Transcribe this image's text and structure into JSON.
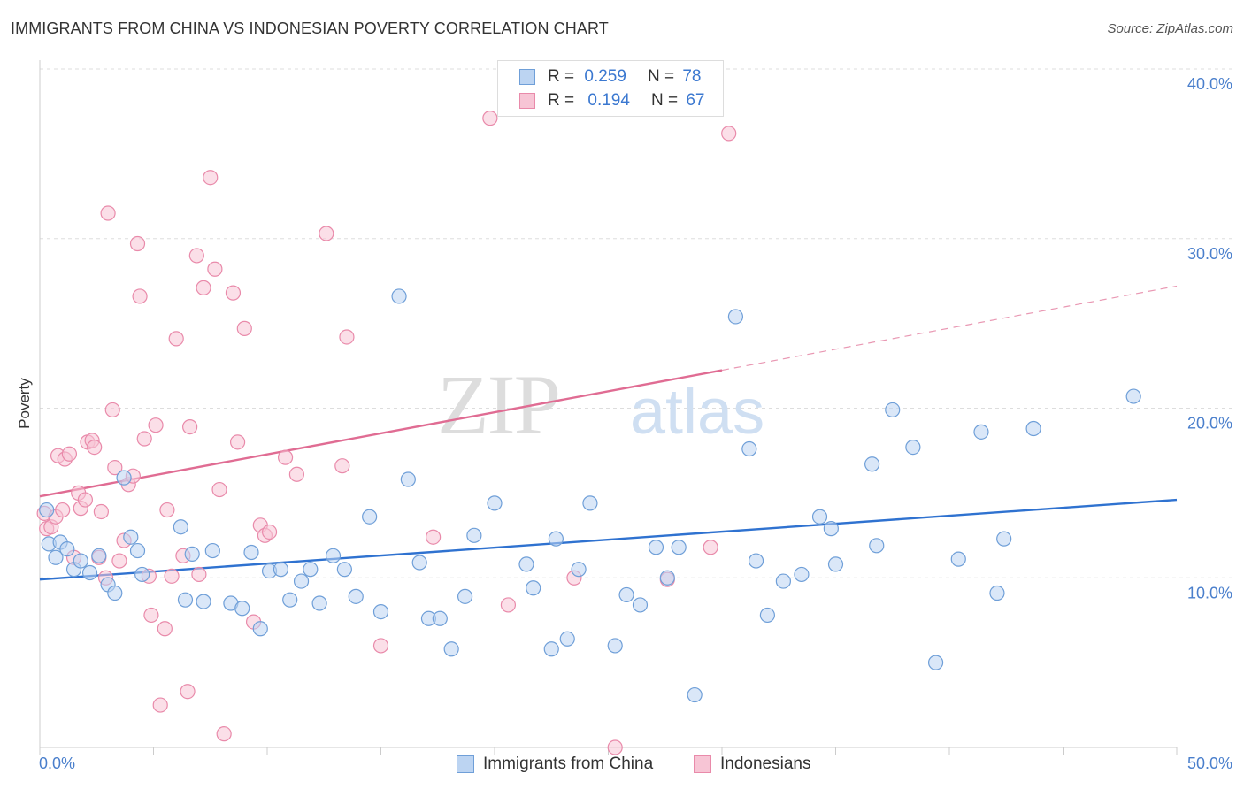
{
  "header": {
    "title": "IMMIGRANTS FROM CHINA VS INDONESIAN POVERTY CORRELATION CHART",
    "source": "Source: ZipAtlas.com"
  },
  "watermark": {
    "zip": "ZIP",
    "atlas": "atlas"
  },
  "legend": {
    "items": [
      {
        "r_label": "R =",
        "r_value": "0.259",
        "n_label": "N =",
        "n_value": "78",
        "color": "#8fb8e8"
      },
      {
        "r_label": "R =",
        "r_value": "0.194",
        "n_label": "N =",
        "n_value": "67",
        "color": "#f2a7bf"
      }
    ]
  },
  "bottom_legend": {
    "china": "Immigrants from China",
    "indonesians": "Indonesians"
  },
  "colors": {
    "china_fill": "#bcd4f2",
    "china_stroke": "#6f9fd8",
    "china_line": "#2f72d0",
    "indo_fill": "#f7c5d5",
    "indo_stroke": "#e98aaa",
    "indo_line": "#e06c93",
    "axis_text": "#4a7fcc",
    "grid": "#dddddd"
  },
  "chart_data": {
    "type": "scatter",
    "title": "IMMIGRANTS FROM CHINA VS INDONESIAN POVERTY CORRELATION CHART",
    "xlabel": "",
    "ylabel": "Poverty",
    "xlim": [
      0,
      50
    ],
    "ylim": [
      0,
      40
    ],
    "x_ticks": [
      "0.0%",
      "50.0%"
    ],
    "y_ticks": [
      "10.0%",
      "20.0%",
      "30.0%",
      "40.0%"
    ],
    "legend_position": "top-center",
    "grid": true,
    "series": [
      {
        "name": "Immigrants from China",
        "points": [
          [
            0.3,
            14.0
          ],
          [
            0.4,
            12.0
          ],
          [
            0.7,
            11.2
          ],
          [
            0.9,
            12.1
          ],
          [
            1.2,
            11.7
          ],
          [
            1.5,
            10.5
          ],
          [
            1.8,
            11.0
          ],
          [
            2.2,
            10.3
          ],
          [
            2.6,
            11.3
          ],
          [
            3.7,
            15.9
          ],
          [
            3.0,
            9.6
          ],
          [
            3.3,
            9.1
          ],
          [
            4.0,
            12.4
          ],
          [
            4.3,
            11.6
          ],
          [
            4.5,
            10.2
          ],
          [
            6.2,
            13.0
          ],
          [
            6.4,
            8.7
          ],
          [
            6.7,
            11.4
          ],
          [
            7.2,
            8.6
          ],
          [
            7.6,
            11.6
          ],
          [
            8.4,
            8.5
          ],
          [
            8.9,
            8.2
          ],
          [
            9.3,
            11.5
          ],
          [
            9.7,
            7.0
          ],
          [
            10.1,
            10.4
          ],
          [
            10.6,
            10.5
          ],
          [
            11.0,
            8.7
          ],
          [
            11.5,
            9.8
          ],
          [
            11.9,
            10.5
          ],
          [
            12.3,
            8.5
          ],
          [
            12.9,
            11.3
          ],
          [
            13.4,
            10.5
          ],
          [
            13.9,
            8.9
          ],
          [
            14.5,
            13.6
          ],
          [
            15.0,
            8.0
          ],
          [
            15.8,
            26.6
          ],
          [
            16.2,
            15.8
          ],
          [
            16.7,
            10.9
          ],
          [
            17.1,
            7.6
          ],
          [
            17.6,
            7.6
          ],
          [
            18.1,
            5.8
          ],
          [
            18.7,
            8.9
          ],
          [
            19.1,
            12.5
          ],
          [
            20.0,
            14.4
          ],
          [
            21.4,
            10.8
          ],
          [
            21.7,
            9.4
          ],
          [
            22.5,
            5.8
          ],
          [
            22.7,
            12.3
          ],
          [
            23.2,
            6.4
          ],
          [
            23.7,
            10.5
          ],
          [
            24.2,
            14.4
          ],
          [
            25.3,
            6.0
          ],
          [
            25.8,
            9.0
          ],
          [
            26.4,
            8.4
          ],
          [
            27.1,
            11.8
          ],
          [
            27.6,
            10.0
          ],
          [
            28.1,
            11.8
          ],
          [
            28.8,
            3.1
          ],
          [
            30.6,
            25.4
          ],
          [
            31.2,
            17.6
          ],
          [
            31.5,
            11.0
          ],
          [
            32.0,
            7.8
          ],
          [
            32.7,
            9.8
          ],
          [
            33.5,
            10.2
          ],
          [
            34.3,
            13.6
          ],
          [
            34.8,
            12.9
          ],
          [
            35.0,
            10.8
          ],
          [
            36.6,
            16.7
          ],
          [
            36.8,
            11.9
          ],
          [
            37.5,
            19.9
          ],
          [
            38.4,
            17.7
          ],
          [
            39.4,
            5.0
          ],
          [
            40.4,
            11.1
          ],
          [
            41.4,
            18.6
          ],
          [
            42.1,
            9.1
          ],
          [
            42.4,
            12.3
          ],
          [
            43.7,
            18.8
          ],
          [
            48.1,
            20.7
          ]
        ]
      },
      {
        "name": "Indonesians",
        "points": [
          [
            0.2,
            13.8
          ],
          [
            0.3,
            12.9
          ],
          [
            0.5,
            13.0
          ],
          [
            0.7,
            13.6
          ],
          [
            0.8,
            17.2
          ],
          [
            1.0,
            14.0
          ],
          [
            1.1,
            17.0
          ],
          [
            1.3,
            17.3
          ],
          [
            1.5,
            11.2
          ],
          [
            1.7,
            15.0
          ],
          [
            1.8,
            14.1
          ],
          [
            2.0,
            14.6
          ],
          [
            2.1,
            18.0
          ],
          [
            2.3,
            18.1
          ],
          [
            2.4,
            17.7
          ],
          [
            2.6,
            11.2
          ],
          [
            2.7,
            13.9
          ],
          [
            2.9,
            10.0
          ],
          [
            3.0,
            31.5
          ],
          [
            3.2,
            19.9
          ],
          [
            3.3,
            16.5
          ],
          [
            3.5,
            11.0
          ],
          [
            3.7,
            12.2
          ],
          [
            3.9,
            15.5
          ],
          [
            4.1,
            16.0
          ],
          [
            4.3,
            29.7
          ],
          [
            4.4,
            26.6
          ],
          [
            4.6,
            18.2
          ],
          [
            4.8,
            10.1
          ],
          [
            4.9,
            7.8
          ],
          [
            5.1,
            19.0
          ],
          [
            5.3,
            2.5
          ],
          [
            5.5,
            7.0
          ],
          [
            5.6,
            14.0
          ],
          [
            5.8,
            10.1
          ],
          [
            6.0,
            24.1
          ],
          [
            6.3,
            11.3
          ],
          [
            6.5,
            3.3
          ],
          [
            6.6,
            18.9
          ],
          [
            6.9,
            29.0
          ],
          [
            7.0,
            10.2
          ],
          [
            7.2,
            27.1
          ],
          [
            7.5,
            33.6
          ],
          [
            7.7,
            28.2
          ],
          [
            7.9,
            15.2
          ],
          [
            8.1,
            0.8
          ],
          [
            8.5,
            26.8
          ],
          [
            8.7,
            18.0
          ],
          [
            9.0,
            24.7
          ],
          [
            9.4,
            7.4
          ],
          [
            9.7,
            13.1
          ],
          [
            9.9,
            12.5
          ],
          [
            10.1,
            12.7
          ],
          [
            10.8,
            17.1
          ],
          [
            11.3,
            16.1
          ],
          [
            12.6,
            30.3
          ],
          [
            13.3,
            16.6
          ],
          [
            13.5,
            24.2
          ],
          [
            15.0,
            6.0
          ],
          [
            17.3,
            12.4
          ],
          [
            19.8,
            37.1
          ],
          [
            20.6,
            8.4
          ],
          [
            23.5,
            10.0
          ],
          [
            25.3,
            0.0
          ],
          [
            27.6,
            9.9
          ],
          [
            29.5,
            11.8
          ],
          [
            30.3,
            36.2
          ]
        ]
      }
    ],
    "trend_lines": [
      {
        "series": "Immigrants from China",
        "x": [
          0,
          50
        ],
        "y": [
          9.9,
          14.6
        ]
      },
      {
        "series": "Indonesians",
        "x": [
          0,
          50
        ],
        "y": [
          14.8,
          27.2
        ],
        "solid_until_x": 30
      }
    ]
  }
}
